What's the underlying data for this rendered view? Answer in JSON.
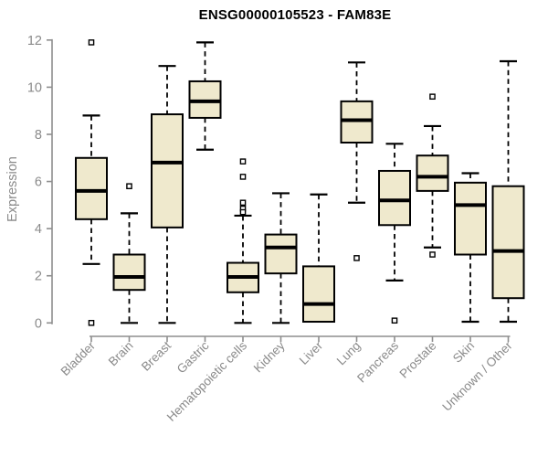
{
  "chart_data": {
    "type": "boxplot",
    "title": "ENSG00000105523 - FAM83E",
    "ylabel": "Expression",
    "xlabel": "",
    "ylim": [
      0,
      12
    ],
    "yticks": [
      0,
      2,
      4,
      6,
      8,
      10,
      12
    ],
    "grid": false,
    "legend": "none",
    "categories": [
      "Bladder",
      "Brain",
      "Breast",
      "Gastric",
      "Hematopoietic cells",
      "Kidney",
      "Liver",
      "Lung",
      "Pancreas",
      "Prostate",
      "Skin",
      "Unknown / Other"
    ],
    "series": [
      {
        "category": "Bladder",
        "whisker_low": 2.5,
        "q1": 4.4,
        "median": 5.6,
        "q3": 7.0,
        "whisker_high": 8.8,
        "outliers": [
          11.9,
          0
        ]
      },
      {
        "category": "Brain",
        "whisker_low": 0,
        "q1": 1.4,
        "median": 1.95,
        "q3": 2.9,
        "whisker_high": 4.65,
        "outliers": [
          5.8
        ]
      },
      {
        "category": "Breast",
        "whisker_low": 0,
        "q1": 4.05,
        "median": 6.8,
        "q3": 8.85,
        "whisker_high": 10.9,
        "outliers": []
      },
      {
        "category": "Gastric",
        "whisker_low": 7.35,
        "q1": 8.7,
        "median": 9.4,
        "q3": 10.25,
        "whisker_high": 11.9,
        "outliers": []
      },
      {
        "category": "Hematopoietic cells",
        "whisker_low": 0,
        "q1": 1.3,
        "median": 1.95,
        "q3": 2.55,
        "whisker_high": 4.55,
        "outliers": [
          6.85,
          6.2,
          5.1,
          4.85,
          4.7
        ]
      },
      {
        "category": "Kidney",
        "whisker_low": 0,
        "q1": 2.1,
        "median": 3.2,
        "q3": 3.75,
        "whisker_high": 5.5,
        "outliers": []
      },
      {
        "category": "Liver",
        "whisker_low": 0.05,
        "q1": 0.05,
        "median": 0.8,
        "q3": 2.4,
        "whisker_high": 5.45,
        "outliers": []
      },
      {
        "category": "Lung",
        "whisker_low": 5.1,
        "q1": 7.65,
        "median": 8.6,
        "q3": 9.4,
        "whisker_high": 11.05,
        "outliers": [
          2.75
        ]
      },
      {
        "category": "Pancreas",
        "whisker_low": 1.8,
        "q1": 4.15,
        "median": 5.2,
        "q3": 6.45,
        "whisker_high": 7.6,
        "outliers": [
          0.1
        ]
      },
      {
        "category": "Prostate",
        "whisker_low": 3.2,
        "q1": 5.6,
        "median": 6.2,
        "q3": 7.1,
        "whisker_high": 8.35,
        "outliers": [
          9.6,
          2.9
        ]
      },
      {
        "category": "Skin",
        "whisker_low": 0.05,
        "q1": 2.9,
        "median": 5.0,
        "q3": 5.95,
        "whisker_high": 6.35,
        "outliers": []
      },
      {
        "category": "Unknown / Other",
        "whisker_low": 0.05,
        "q1": 1.05,
        "median": 3.05,
        "q3": 5.8,
        "whisker_high": 11.1,
        "outliers": []
      }
    ]
  },
  "style": {
    "background": "#FFFFFF",
    "box_fill": "#EFE9CD",
    "box_border": "#000000",
    "median_color": "#000000",
    "whisker_color": "#000000",
    "outlier_color": "#000000",
    "axis_color": "#8E8E8E",
    "tick_label_color": "#8A8A8A",
    "title_color": "#000000"
  }
}
